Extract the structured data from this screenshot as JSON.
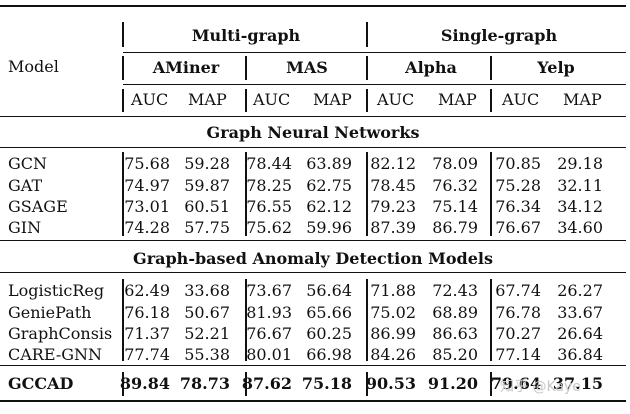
{
  "header": {
    "model_label": "Model",
    "groups": [
      "Multi-graph",
      "Single-graph"
    ],
    "datasets": [
      "AMiner",
      "MAS",
      "Alpha",
      "Yelp"
    ],
    "metrics": [
      "AUC",
      "MAP",
      "AUC",
      "MAP",
      "AUC",
      "MAP",
      "AUC",
      "MAP"
    ]
  },
  "sections": [
    {
      "title": "Graph Neural Networks",
      "rows": [
        {
          "model": "GCN",
          "values": [
            "75.68",
            "59.28",
            "78.44",
            "63.89",
            "82.12",
            "78.09",
            "70.85",
            "29.18"
          ]
        },
        {
          "model": "GAT",
          "values": [
            "74.97",
            "59.87",
            "78.25",
            "62.75",
            "78.45",
            "76.32",
            "75.28",
            "32.11"
          ]
        },
        {
          "model": "GSAGE",
          "values": [
            "73.01",
            "60.51",
            "76.55",
            "62.12",
            "79.23",
            "75.14",
            "76.34",
            "34.12"
          ]
        },
        {
          "model": "GIN",
          "values": [
            "74.28",
            "57.75",
            "75.62",
            "59.96",
            "87.39",
            "86.79",
            "76.67",
            "34.60"
          ]
        }
      ]
    },
    {
      "title": "Graph-based Anomaly Detection Models",
      "rows": [
        {
          "model": "LogisticReg",
          "values": [
            "62.49",
            "33.68",
            "73.67",
            "56.64",
            "71.88",
            "72.43",
            "67.74",
            "26.27"
          ]
        },
        {
          "model": "GeniePath",
          "values": [
            "76.18",
            "50.67",
            "81.93",
            "65.66",
            "75.02",
            "68.89",
            "76.78",
            "33.67"
          ]
        },
        {
          "model": "GraphConsis",
          "values": [
            "71.37",
            "52.21",
            "76.67",
            "60.25",
            "86.99",
            "86.63",
            "70.27",
            "26.64"
          ]
        },
        {
          "model": "CARE-GNN",
          "values": [
            "77.74",
            "55.38",
            "80.01",
            "66.98",
            "84.26",
            "85.20",
            "77.14",
            "36.84"
          ]
        }
      ]
    }
  ],
  "final_row": {
    "model": "GCCAD",
    "values": [
      "89.84",
      "78.73",
      "87.62",
      "75.18",
      "90.53",
      "91.20",
      "79.64",
      "37.15"
    ]
  },
  "watermark": "知乎 @Kaye"
}
